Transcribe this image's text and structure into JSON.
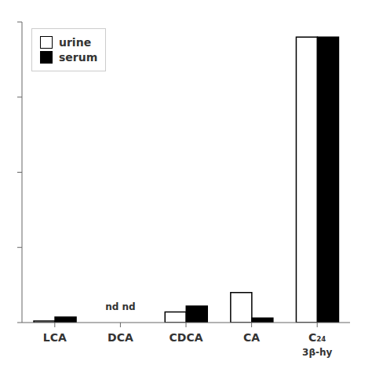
{
  "chart_data": {
    "type": "bar",
    "categories": [
      "LCA",
      "DCA",
      "CDCA",
      "CA",
      "C₂₄"
    ],
    "series": [
      {
        "name": "urine",
        "color": "#ffffff",
        "values": [
          0.5,
          0,
          3.5,
          10,
          95
        ]
      },
      {
        "name": "serum",
        "color": "#000000",
        "values": [
          1.8,
          0,
          5.5,
          1.5,
          95
        ]
      }
    ],
    "ylim": [
      0,
      100
    ],
    "yticks": [
      0,
      25,
      50,
      75,
      100
    ],
    "grid": false,
    "legend": "upper left",
    "tick_labels": "x",
    "annotations": [
      {
        "text": "nd nd",
        "category": "DCA",
        "y": 3.0
      },
      {
        "text": "3β-hy",
        "category": "C₂₄"
      }
    ]
  }
}
